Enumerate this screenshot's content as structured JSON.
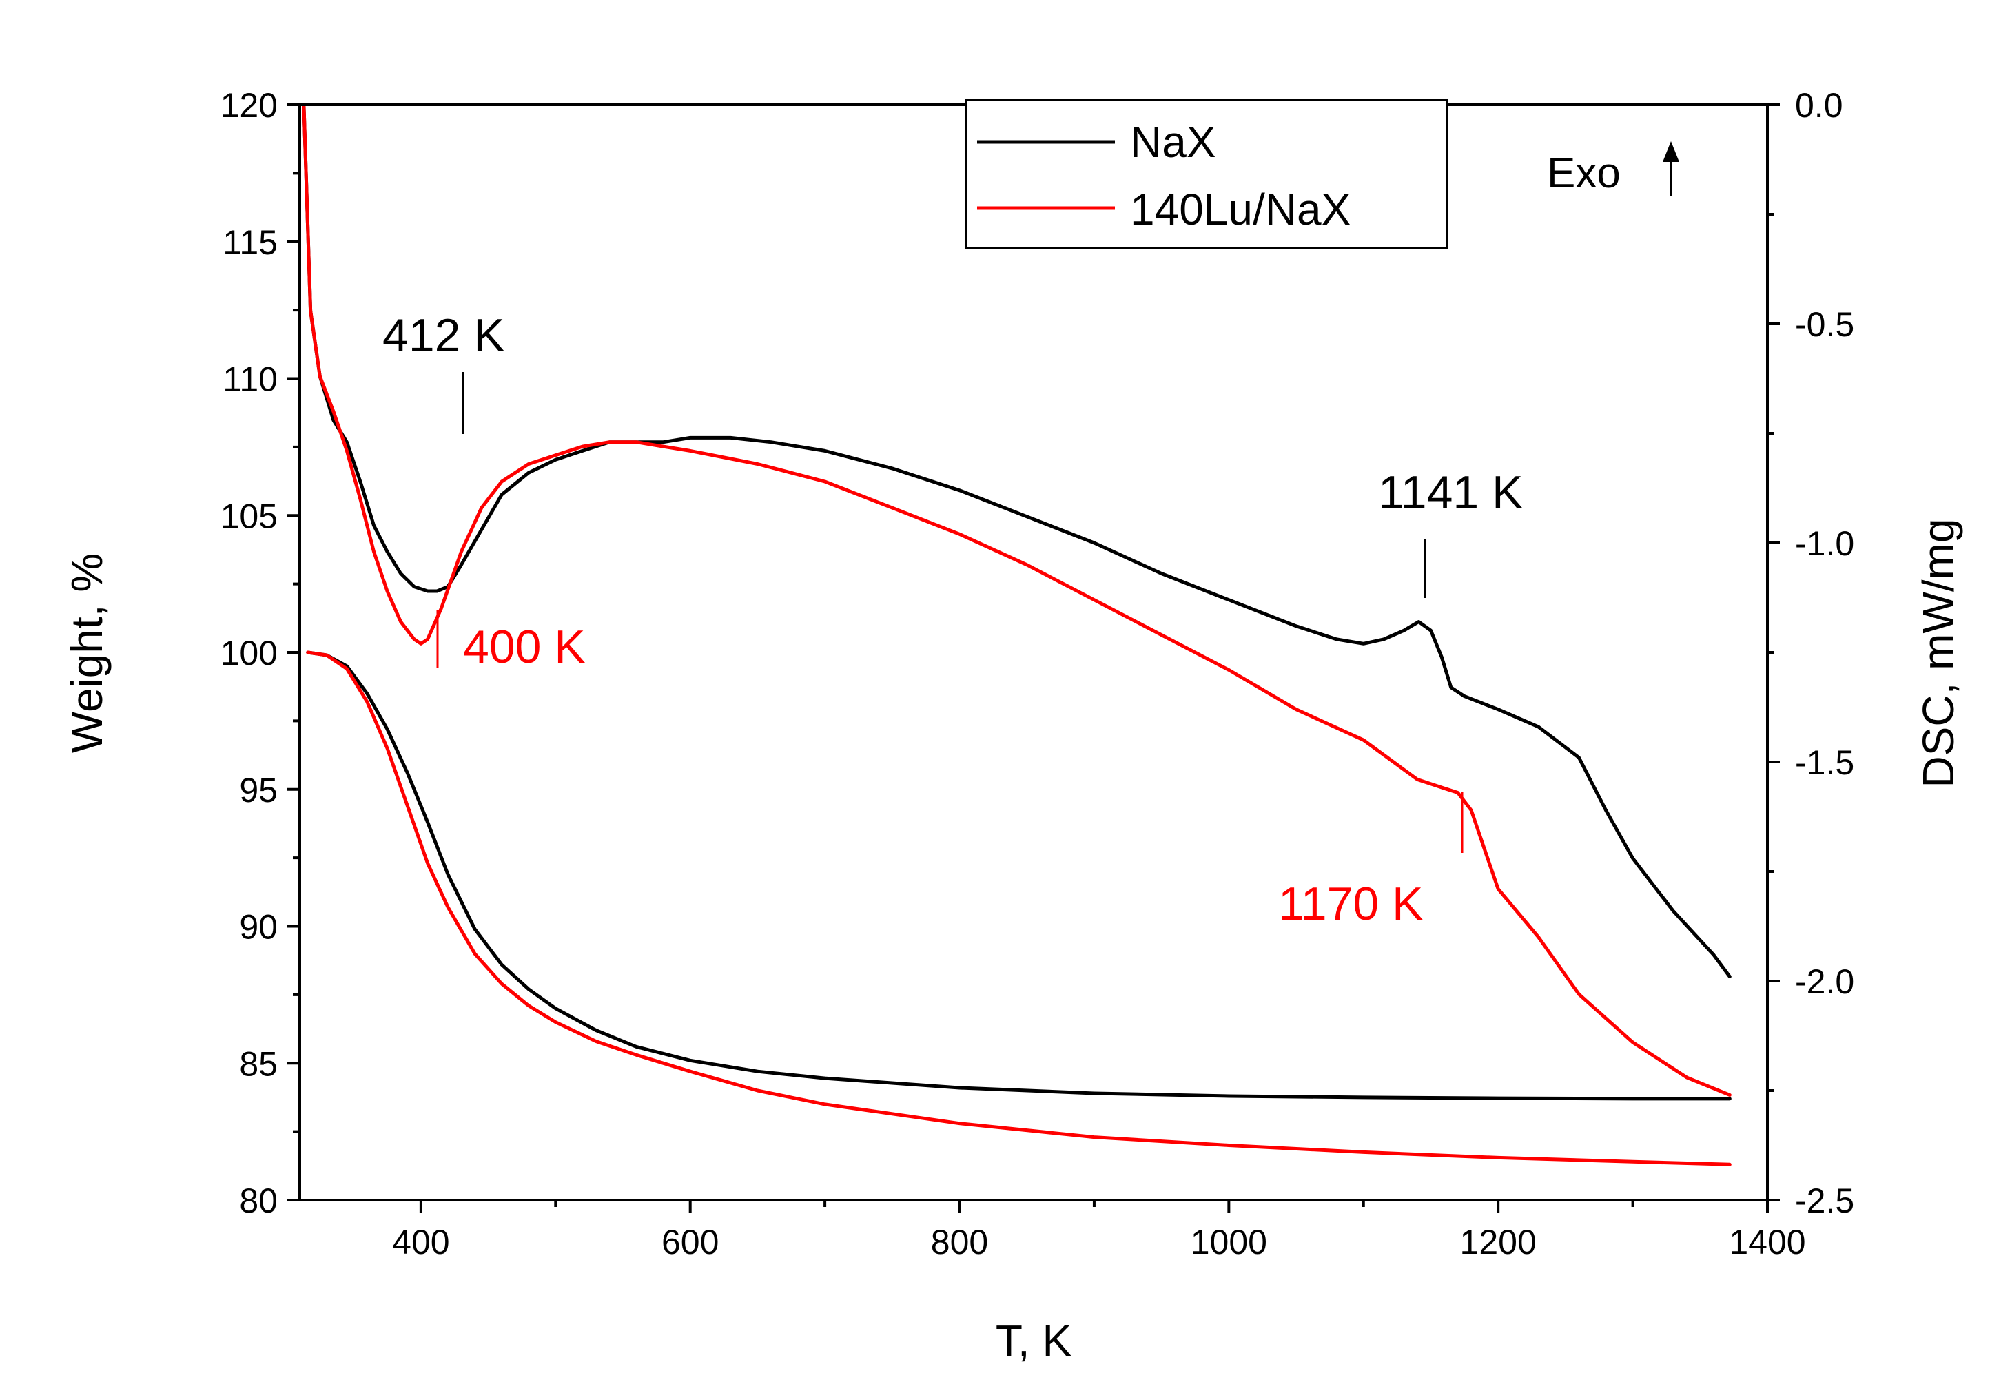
{
  "chart_data": {
    "type": "line",
    "title": "",
    "xlabel": "T, K",
    "ylabel_left": "Weight, %",
    "ylabel_right": "DSC, mW/mg",
    "xlim": [
      310,
      1400
    ],
    "ylim_left": [
      80,
      120
    ],
    "ylim_right": [
      -2.5,
      0.0
    ],
    "x_ticks": [
      400,
      600,
      800,
      1000,
      1200,
      1400
    ],
    "y_left_ticks": [
      80,
      85,
      90,
      95,
      100,
      105,
      110,
      115,
      120
    ],
    "y_right_ticks": [
      "0.0",
      "-0.5",
      "-1.0",
      "-1.5",
      "-2.0",
      "-2.5"
    ],
    "legend": {
      "position": "top-center",
      "entries": [
        "NaX",
        "140Lu/NaX"
      ]
    },
    "exo_label": "Exo",
    "series": [
      {
        "name": "NaX",
        "kind": "TG",
        "axis": "left",
        "color": "#000000",
        "x": [
          316,
          330,
          345,
          360,
          375,
          390,
          405,
          420,
          440,
          460,
          480,
          500,
          530,
          560,
          600,
          650,
          700,
          800,
          900,
          1000,
          1100,
          1200,
          1300,
          1372
        ],
        "y": [
          100.0,
          99.9,
          99.5,
          98.5,
          97.2,
          95.6,
          93.8,
          91.9,
          89.9,
          88.6,
          87.7,
          87.0,
          86.2,
          85.6,
          85.1,
          84.7,
          84.45,
          84.1,
          83.9,
          83.8,
          83.75,
          83.72,
          83.7,
          83.7
        ]
      },
      {
        "name": "140Lu/NaX",
        "kind": "TG",
        "axis": "left",
        "color": "#ff0000",
        "x": [
          316,
          330,
          345,
          360,
          375,
          390,
          405,
          420,
          440,
          460,
          480,
          500,
          530,
          560,
          600,
          650,
          700,
          800,
          900,
          1000,
          1100,
          1200,
          1300,
          1372
        ],
        "y": [
          100.0,
          99.9,
          99.4,
          98.2,
          96.5,
          94.4,
          92.3,
          90.7,
          89.0,
          87.9,
          87.1,
          86.5,
          85.8,
          85.3,
          84.7,
          84.0,
          83.5,
          82.8,
          82.3,
          82.0,
          81.75,
          81.55,
          81.4,
          81.3
        ]
      },
      {
        "name": "NaX",
        "kind": "DSC",
        "axis": "right",
        "color": "#000000",
        "x": [
          313,
          318,
          325,
          335,
          345,
          355,
          365,
          375,
          385,
          395,
          405,
          412,
          420,
          430,
          445,
          460,
          480,
          500,
          520,
          540,
          560,
          580,
          600,
          630,
          660,
          700,
          750,
          800,
          850,
          900,
          950,
          1000,
          1050,
          1080,
          1100,
          1115,
          1130,
          1141,
          1150,
          1158,
          1165,
          1175,
          1200,
          1230,
          1260,
          1280,
          1300,
          1330,
          1360,
          1372
        ],
        "y": [
          0.0,
          -0.47,
          -0.62,
          -0.72,
          -0.77,
          -0.86,
          -0.96,
          -1.02,
          -1.07,
          -1.1,
          -1.11,
          -1.11,
          -1.1,
          -1.05,
          -0.97,
          -0.89,
          -0.84,
          -0.81,
          -0.79,
          -0.77,
          -0.77,
          -0.77,
          -0.76,
          -0.76,
          -0.77,
          -0.79,
          -0.83,
          -0.88,
          -0.94,
          -1.0,
          -1.07,
          -1.13,
          -1.19,
          -1.22,
          -1.23,
          -1.22,
          -1.2,
          -1.18,
          -1.2,
          -1.26,
          -1.33,
          -1.35,
          -1.38,
          -1.42,
          -1.49,
          -1.61,
          -1.72,
          -1.84,
          -1.94,
          -1.99
        ]
      },
      {
        "name": "140Lu/NaX",
        "kind": "DSC",
        "axis": "right",
        "color": "#ff0000",
        "x": [
          313,
          318,
          325,
          335,
          345,
          355,
          365,
          375,
          385,
          395,
          400,
          405,
          415,
          430,
          445,
          460,
          480,
          500,
          520,
          540,
          560,
          580,
          600,
          650,
          700,
          750,
          800,
          850,
          900,
          950,
          1000,
          1050,
          1100,
          1140,
          1160,
          1170,
          1180,
          1190,
          1200,
          1230,
          1260,
          1300,
          1340,
          1372
        ],
        "y": [
          0.0,
          -0.47,
          -0.62,
          -0.7,
          -0.79,
          -0.9,
          -1.02,
          -1.11,
          -1.18,
          -1.22,
          -1.23,
          -1.22,
          -1.15,
          -1.02,
          -0.92,
          -0.86,
          -0.82,
          -0.8,
          -0.78,
          -0.77,
          -0.77,
          -0.78,
          -0.79,
          -0.82,
          -0.86,
          -0.92,
          -0.98,
          -1.05,
          -1.13,
          -1.21,
          -1.29,
          -1.38,
          -1.45,
          -1.54,
          -1.56,
          -1.57,
          -1.61,
          -1.7,
          -1.79,
          -1.9,
          -2.03,
          -2.14,
          -2.22,
          -2.26
        ]
      }
    ],
    "annotations": [
      {
        "text": "412 K",
        "x": 412,
        "color": "#000000"
      },
      {
        "text": "400 K",
        "x": 400,
        "color": "#ff0000"
      },
      {
        "text": "1141 K",
        "x": 1141,
        "color": "#000000"
      },
      {
        "text": "1170 K",
        "x": 1170,
        "color": "#ff0000"
      }
    ]
  }
}
